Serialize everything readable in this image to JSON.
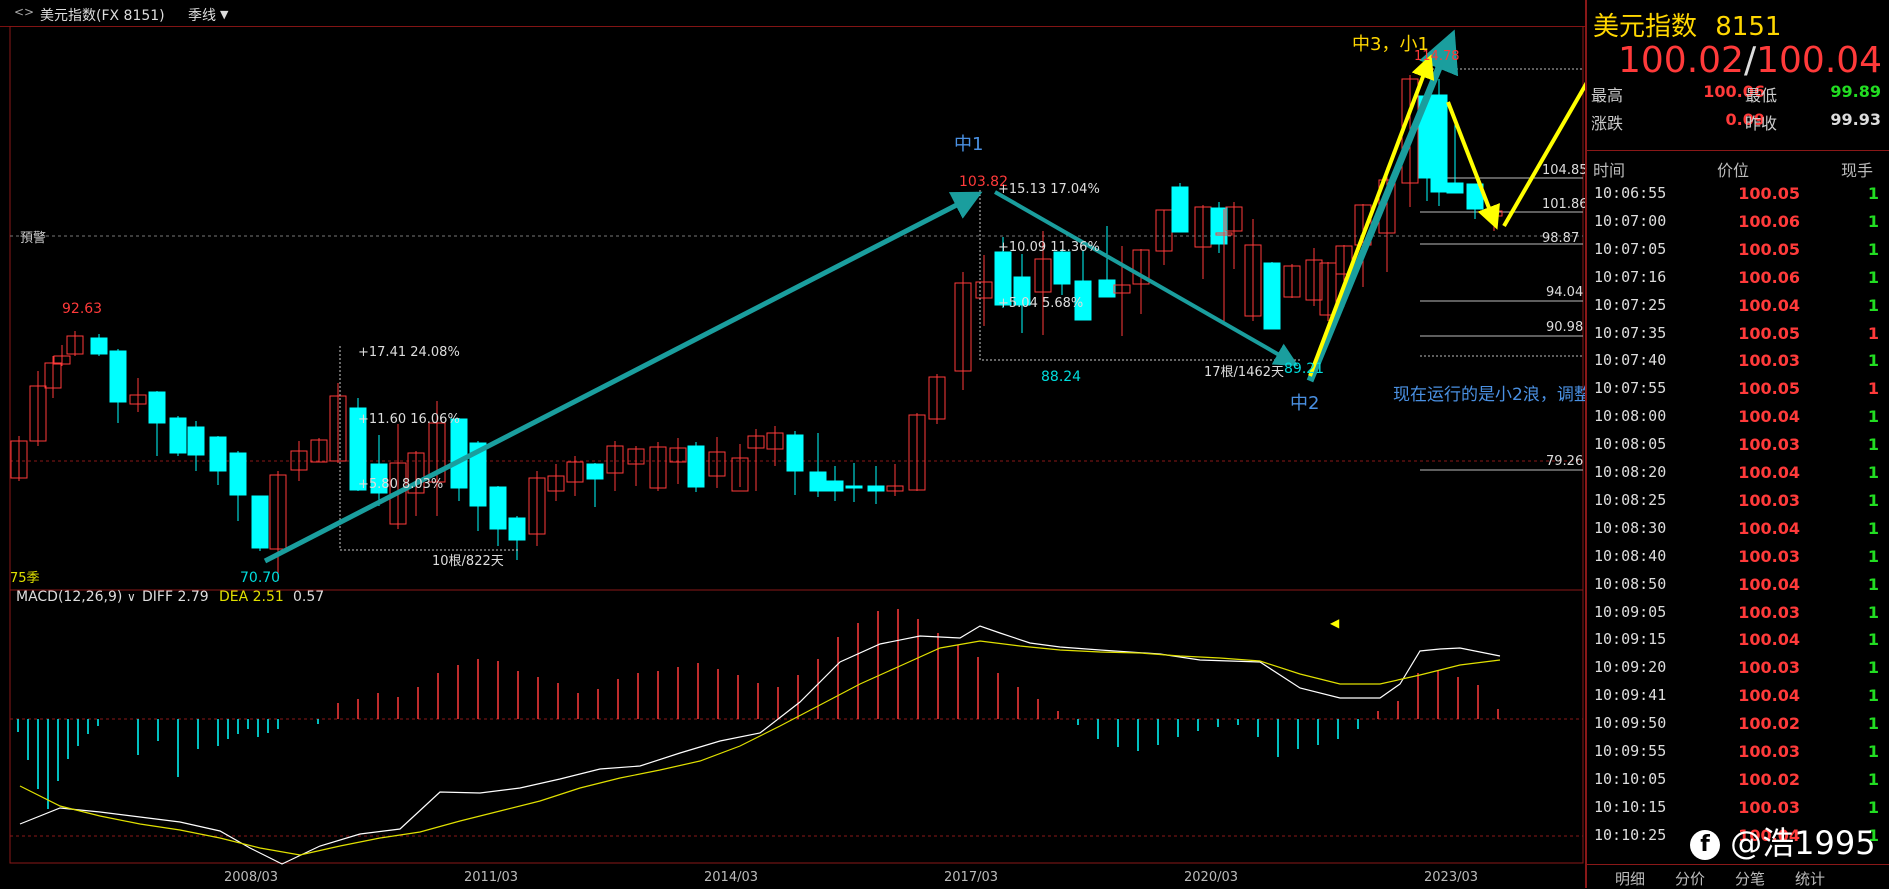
{
  "header": {
    "icon": "link-icon",
    "symbol": "美元指数(FX 8151)",
    "period": "季线",
    "period_arrow": "chevron-down-icon"
  },
  "chart_data": {
    "type": "candlestick",
    "x_ticks": [
      "2008/03",
      "2011/03",
      "2014/03",
      "2017/03",
      "2020/03",
      "2023/03"
    ],
    "period_label": "75季",
    "highs_lows": {
      "high_1": "92.63",
      "low_1": "70.70",
      "high_2": "103.82",
      "low_2": "88.24",
      "low_3": "89.21",
      "high_3": "114.78"
    },
    "fib_levels": [
      "104.85",
      "101.86",
      "98.87",
      "94.04",
      "90.98",
      "79.26"
    ],
    "alert_label": "預警",
    "measure_1": {
      "m1": "+17.41  24.08%",
      "m2": "+11.60  16.06%",
      "m3": "+5.80  8.03%",
      "span": "10根/822天"
    },
    "measure_2": {
      "m1": "+15.13  17.04%",
      "m2": "+10.09  11.36%",
      "m3": "+5.04  5.68%",
      "span": "17根/1462天"
    },
    "wave_labels": {
      "w1": "中1",
      "w2": "中2",
      "w3": "中3，小1"
    },
    "annotation": "现在运行的是小2浪，调整浪",
    "macd": {
      "title": "MACD(12,26,9)",
      "diff": "DIFF 2.79",
      "dea": "DEA 2.51",
      "macd": "0.57"
    },
    "colors": {
      "up": "#ff3a3a",
      "down": "#00ffff",
      "arrow_teal": "#1a9e9e",
      "arrow_yellow": "#ffff00",
      "diff_line": "#ffffff",
      "dea_line": "#e0e000"
    }
  },
  "quote": {
    "name": "美元指数",
    "code": "8151",
    "bid": "100.02",
    "ask": "100.04",
    "high_label": "最高",
    "high": "100.06",
    "low_label": "最低",
    "low": "99.89",
    "change_label": "涨跌",
    "change": "0.09",
    "prev_label": "昨收",
    "prev": "99.93"
  },
  "trades": {
    "col_time": "时间",
    "col_price": "价位",
    "col_vol": "现手",
    "rows": [
      {
        "time": "10:06:55",
        "price": "100.05",
        "vol": "1"
      },
      {
        "time": "10:07:00",
        "price": "100.06",
        "vol": "1"
      },
      {
        "time": "10:07:05",
        "price": "100.05",
        "vol": "1"
      },
      {
        "time": "10:07:16",
        "price": "100.06",
        "vol": "1"
      },
      {
        "time": "10:07:25",
        "price": "100.04",
        "vol": "1"
      },
      {
        "time": "10:07:35",
        "price": "100.05",
        "vol": "1"
      },
      {
        "time": "10:07:40",
        "price": "100.03",
        "vol": "1"
      },
      {
        "time": "10:07:55",
        "price": "100.05",
        "vol": "1"
      },
      {
        "time": "10:08:00",
        "price": "100.04",
        "vol": "1"
      },
      {
        "time": "10:08:05",
        "price": "100.03",
        "vol": "1"
      },
      {
        "time": "10:08:20",
        "price": "100.04",
        "vol": "1"
      },
      {
        "time": "10:08:25",
        "price": "100.03",
        "vol": "1"
      },
      {
        "time": "10:08:30",
        "price": "100.04",
        "vol": "1"
      },
      {
        "time": "10:08:40",
        "price": "100.03",
        "vol": "1"
      },
      {
        "time": "10:08:50",
        "price": "100.04",
        "vol": "1"
      },
      {
        "time": "10:09:05",
        "price": "100.03",
        "vol": "1"
      },
      {
        "time": "10:09:15",
        "price": "100.04",
        "vol": "1"
      },
      {
        "time": "10:09:20",
        "price": "100.03",
        "vol": "1"
      },
      {
        "time": "10:09:41",
        "price": "100.04",
        "vol": "1"
      },
      {
        "time": "10:09:50",
        "price": "100.02",
        "vol": "1"
      },
      {
        "time": "10:09:55",
        "price": "100.03",
        "vol": "1"
      },
      {
        "time": "10:10:05",
        "price": "100.02",
        "vol": "1"
      },
      {
        "time": "10:10:15",
        "price": "100.03",
        "vol": "1"
      },
      {
        "time": "10:10:25",
        "price": "100.04",
        "vol": "1"
      }
    ]
  },
  "tabs": [
    "明细",
    "分价",
    "分笔",
    "统计"
  ],
  "watermark": "@浩1995"
}
